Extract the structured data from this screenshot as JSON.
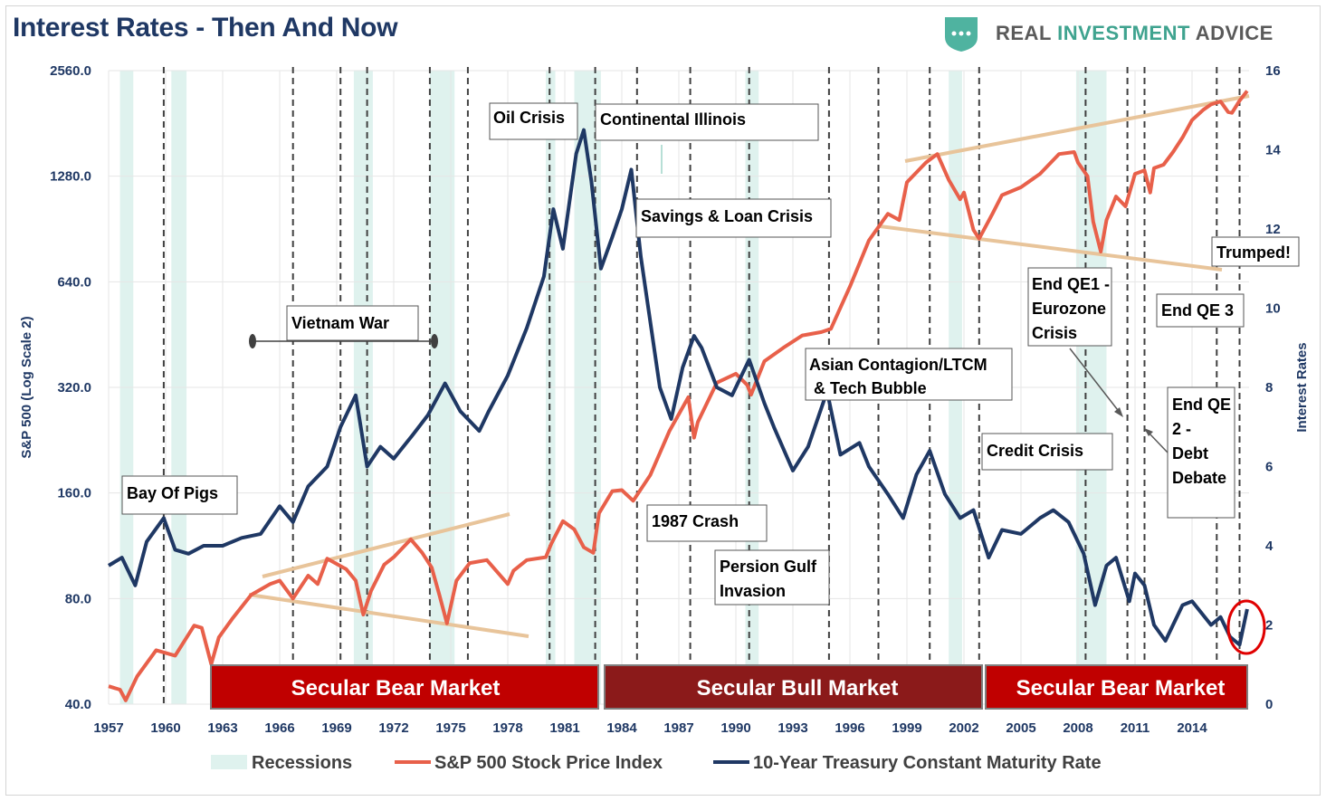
{
  "header": {
    "title": "Interest Rates - Then And Now",
    "logo_text_1": "REAL ",
    "logo_text_2": "INVESTMENT",
    "logo_text_3": " ADVICE"
  },
  "colors": {
    "sp500": "#e8604a",
    "treasury": "#1f3864",
    "recession": "#dff2ee",
    "bear_band": "#c00000",
    "bull_band": "#8b1a1a",
    "trend": "#e8c49a",
    "title": "#1f3864"
  },
  "chart_data": {
    "type": "line",
    "title": "Interest Rates - Then And Now",
    "xlabel": "",
    "ylabel": "S&P 500 (Log Scale 2)",
    "y2label": "Interest Rates",
    "x_range": [
      1957,
      2017
    ],
    "y_scale": "log2",
    "y_ticks": [
      40,
      80,
      160,
      320,
      640,
      1280,
      2560
    ],
    "y_tick_labels": [
      "40.0",
      "80.0",
      "160.0",
      "320.0",
      "640.0",
      "1280.0",
      "2560.0"
    ],
    "y2_ticks": [
      0,
      2,
      4,
      6,
      8,
      10,
      12,
      14,
      16
    ],
    "y2_tick_labels": [
      "0",
      "2",
      "4",
      "6",
      "8",
      "10",
      "12",
      "14",
      "16"
    ],
    "x_ticks": [
      1957,
      1960,
      1963,
      1966,
      1969,
      1972,
      1975,
      1978,
      1981,
      1984,
      1987,
      1990,
      1993,
      1996,
      1999,
      2002,
      2005,
      2008,
      2011,
      2014
    ],
    "x_tick_labels": [
      "1957",
      "1960",
      "1963",
      "1966",
      "1969",
      "1972",
      "1975",
      "1978",
      "1981",
      "1984",
      "1987",
      "1990",
      "1993",
      "1996",
      "1999",
      "2002",
      "2005",
      "2008",
      "2011",
      "2014"
    ],
    "recessions": [
      [
        1957.6,
        1958.3
      ],
      [
        1960.3,
        1961.1
      ],
      [
        1969.9,
        1970.9
      ],
      [
        1973.9,
        1975.2
      ],
      [
        1980.0,
        1980.5
      ],
      [
        1981.5,
        1982.9
      ],
      [
        1990.5,
        1991.2
      ],
      [
        2001.2,
        2001.9
      ],
      [
        2007.9,
        2009.5
      ]
    ],
    "event_lines": [
      1959.9,
      1966.7,
      1969.2,
      1970.6,
      1973.9,
      1975.9,
      1980.2,
      1982.6,
      1984.8,
      1987.6,
      1990.7,
      1994.9,
      1997.5,
      2000.2,
      2002.8,
      2008.4,
      2010.6,
      2011.5,
      2015.3,
      2016.5
    ],
    "series": [
      {
        "name": "S&P 500 Stock Price Index",
        "axis": "left",
        "x": [
          1957.0,
          1957.6,
          1957.9,
          1958.5,
          1959.5,
          1960.0,
          1960.5,
          1961.5,
          1961.9,
          1962.4,
          1962.8,
          1963.5,
          1964.5,
          1965.5,
          1966.0,
          1966.7,
          1967.5,
          1968.0,
          1968.5,
          1969.5,
          1970.0,
          1970.4,
          1970.8,
          1971.5,
          1972.0,
          1972.9,
          1973.5,
          1974.0,
          1974.4,
          1974.8,
          1975.3,
          1976.0,
          1976.9,
          1978.0,
          1978.3,
          1979.0,
          1980.0,
          1980.3,
          1980.9,
          1981.5,
          1982.0,
          1982.5,
          1982.8,
          1983.5,
          1984.0,
          1984.6,
          1985.5,
          1986.5,
          1987.5,
          1987.8,
          1988.0,
          1989.0,
          1990.0,
          1990.6,
          1990.8,
          1991.5,
          1992.5,
          1993.5,
          1994.5,
          1995.0,
          1996.0,
          1997.0,
          1998.0,
          1998.6,
          1999.0,
          2000.0,
          2000.6,
          2001.2,
          2001.8,
          2002.0,
          2002.5,
          2002.8,
          2003.5,
          2004.0,
          2005.0,
          2006.0,
          2007.0,
          2007.8,
          2008.0,
          2008.5,
          2008.8,
          2009.2,
          2009.5,
          2010.0,
          2010.5,
          2011.0,
          2011.5,
          2011.8,
          2012.0,
          2012.5,
          2013.0,
          2013.5,
          2014.0,
          2014.6,
          2015.0,
          2015.5,
          2015.9,
          2016.1,
          2016.5,
          2016.9
        ],
        "y": [
          45,
          44,
          41,
          48,
          57,
          56,
          55,
          67,
          66,
          52,
          62,
          70,
          82,
          88,
          90,
          80,
          93,
          88,
          104,
          97,
          90,
          72,
          84,
          100,
          105,
          118,
          108,
          98,
          82,
          68,
          90,
          101,
          103,
          88,
          96,
          103,
          105,
          115,
          133,
          126,
          112,
          108,
          140,
          162,
          163,
          152,
          180,
          240,
          300,
          230,
          255,
          330,
          350,
          325,
          305,
          380,
          415,
          450,
          460,
          470,
          620,
          840,
          1000,
          960,
          1230,
          1400,
          1480,
          1250,
          1100,
          1150,
          900,
          850,
          1000,
          1130,
          1190,
          1300,
          1480,
          1500,
          1400,
          1280,
          950,
          780,
          960,
          1120,
          1050,
          1300,
          1330,
          1150,
          1350,
          1380,
          1500,
          1650,
          1850,
          1980,
          2050,
          2090,
          1950,
          1940,
          2100,
          2240
        ]
      },
      {
        "name": "10-Year Treasury Constant Maturity Rate",
        "axis": "right",
        "x": [
          1957.0,
          1957.7,
          1958.4,
          1959.0,
          1959.9,
          1960.5,
          1961.2,
          1962.0,
          1963.0,
          1964.0,
          1965.0,
          1966.0,
          1966.7,
          1967.5,
          1968.5,
          1969.2,
          1970.0,
          1970.6,
          1971.3,
          1972.0,
          1973.0,
          1973.8,
          1974.7,
          1975.5,
          1976.5,
          1977.0,
          1978.0,
          1979.0,
          1979.9,
          1980.4,
          1980.9,
          1981.6,
          1982.0,
          1982.4,
          1982.9,
          1983.5,
          1984.0,
          1984.5,
          1985.0,
          1986.0,
          1986.6,
          1987.2,
          1987.8,
          1988.2,
          1989.0,
          1989.8,
          1990.7,
          1991.5,
          1992.0,
          1993.0,
          1993.8,
          1994.8,
          1995.5,
          1996.5,
          1997.0,
          1998.0,
          1998.8,
          1999.5,
          2000.2,
          2001.0,
          2001.8,
          2002.5,
          2003.3,
          2004.0,
          2005.0,
          2006.0,
          2006.7,
          2007.5,
          2008.3,
          2008.9,
          2009.5,
          2010.0,
          2010.7,
          2011.0,
          2011.5,
          2012.0,
          2012.6,
          2013.5,
          2014.0,
          2015.0,
          2015.5,
          2016.0,
          2016.5,
          2016.9
        ],
        "y": [
          3.5,
          3.7,
          3.0,
          4.1,
          4.7,
          3.9,
          3.8,
          4.0,
          4.0,
          4.2,
          4.3,
          5.0,
          4.6,
          5.5,
          6.0,
          7.0,
          7.8,
          6.0,
          6.5,
          6.2,
          6.8,
          7.3,
          8.1,
          7.4,
          6.9,
          7.4,
          8.3,
          9.5,
          10.8,
          12.5,
          11.5,
          13.9,
          14.5,
          13.2,
          11.0,
          11.8,
          12.5,
          13.5,
          11.3,
          8.0,
          7.2,
          8.5,
          9.3,
          9.0,
          8.0,
          7.8,
          8.7,
          7.6,
          7.0,
          5.9,
          6.5,
          7.9,
          6.3,
          6.6,
          6.0,
          5.3,
          4.7,
          5.8,
          6.4,
          5.3,
          4.7,
          4.9,
          3.7,
          4.4,
          4.3,
          4.7,
          4.9,
          4.6,
          3.8,
          2.5,
          3.5,
          3.7,
          2.6,
          3.3,
          3.0,
          2.0,
          1.6,
          2.5,
          2.6,
          2.0,
          2.2,
          1.7,
          1.5,
          2.4
        ]
      }
    ]
  },
  "annotations": {
    "bay_of_pigs": "Bay Of Pigs",
    "vietnam_war": "Vietnam War",
    "oil_crisis": "Oil Crisis",
    "continental_illinois": "Continental Illinois",
    "savings_loan": "Savings & Loan Crisis",
    "crash_1987": "1987 Crash",
    "gulf_line1": "Persion Gulf",
    "gulf_line2": "Invasion",
    "asian_line1": "Asian Contagion/LTCM",
    "asian_line2": "& Tech Bubble",
    "credit_crisis": "Credit Crisis",
    "qe1_line1": "End QE1 -",
    "qe1_line2": "Eurozone",
    "qe1_line3": "Crisis",
    "qe2_line1": "End QE",
    "qe2_line2": "2 -",
    "qe2_line3": "Debt",
    "qe2_line4": "Debate",
    "qe3": "End QE 3",
    "trumped": "Trumped!"
  },
  "bands": {
    "bear1": "Secular Bear Market",
    "bull": "Secular Bull Market",
    "bear2": "Secular Bear Market"
  },
  "legend": {
    "recessions": "Recessions",
    "sp500": "S&P 500 Stock Price Index",
    "treasury": "10-Year Treasury Constant Maturity Rate"
  }
}
